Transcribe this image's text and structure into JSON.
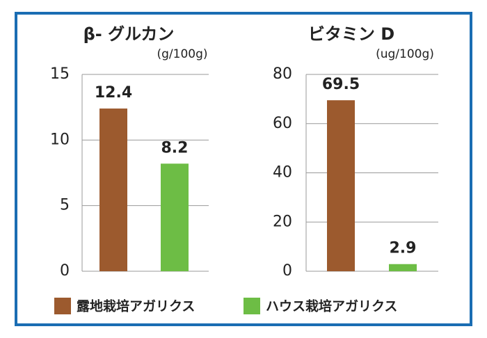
{
  "chart_data": [
    {
      "type": "bar",
      "title": "β- グルカン",
      "subtitle": "(g/100g)",
      "values": [
        12.4,
        8.2
      ],
      "ylim": [
        0,
        15
      ],
      "yticks": [
        0,
        5,
        10,
        15
      ],
      "grid": true
    },
    {
      "type": "bar",
      "title": "ビタミン D",
      "subtitle": "(ug/100g)",
      "values": [
        69.5,
        2.9
      ],
      "ylim": [
        0,
        80
      ],
      "yticks": [
        0,
        20,
        40,
        60,
        80
      ],
      "grid": true
    }
  ],
  "legend": {
    "items": [
      {
        "name": "露地栽培アガリクス",
        "color": "#9c5a2e"
      },
      {
        "name": "ハウス栽培アガリクス",
        "color": "#6dbd45"
      }
    ]
  }
}
